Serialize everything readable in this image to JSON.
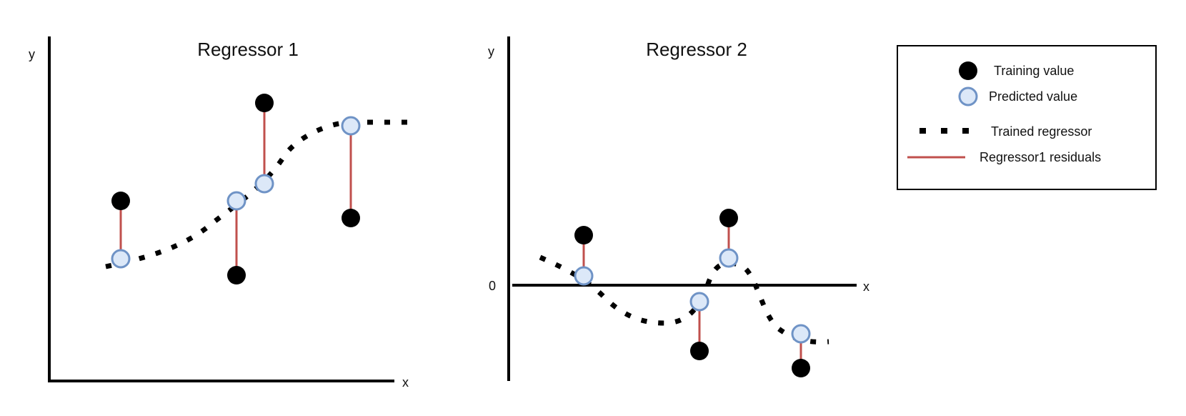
{
  "colors": {
    "training": "#000000",
    "predicted_fill": "#dce8f8",
    "predicted_stroke": "#6f93c6",
    "regressor": "#000000",
    "residual": "#c0504d",
    "axis": "#000000"
  },
  "panels": [
    {
      "title": "Regressor 1",
      "y_label": "y",
      "x_label": "x",
      "zero_label": ""
    },
    {
      "title": "Regressor 2",
      "y_label": "y",
      "x_label": "x",
      "zero_label": "0"
    }
  ],
  "legend": {
    "training_label": "Training value",
    "predicted_label": "Predicted value",
    "regressor_label": "Trained regressor",
    "residual_label": "Regressor1 residuals"
  },
  "chart_data": [
    {
      "type": "scatter",
      "title": "Regressor 1",
      "xlabel": "x",
      "ylabel": "y",
      "points": [
        {
          "x": 1,
          "training": 3.0,
          "predicted": 1.7
        },
        {
          "x": 2,
          "training": 1.0,
          "predicted": 3.0
        },
        {
          "x": 3,
          "training": 6.4,
          "predicted": 3.6
        },
        {
          "x": 4,
          "training": 2.4,
          "predicted": 5.6
        }
      ]
    },
    {
      "type": "scatter",
      "title": "Regressor 2",
      "xlabel": "x",
      "ylabel": "y",
      "points": [
        {
          "x": 1,
          "training": 1.3,
          "predicted": 0.3
        },
        {
          "x": 2,
          "training": -1.6,
          "predicted": -0.4
        },
        {
          "x": 3,
          "training": 1.7,
          "predicted": 0.7
        },
        {
          "x": 4,
          "training": -2.0,
          "predicted": -1.2
        }
      ]
    }
  ]
}
